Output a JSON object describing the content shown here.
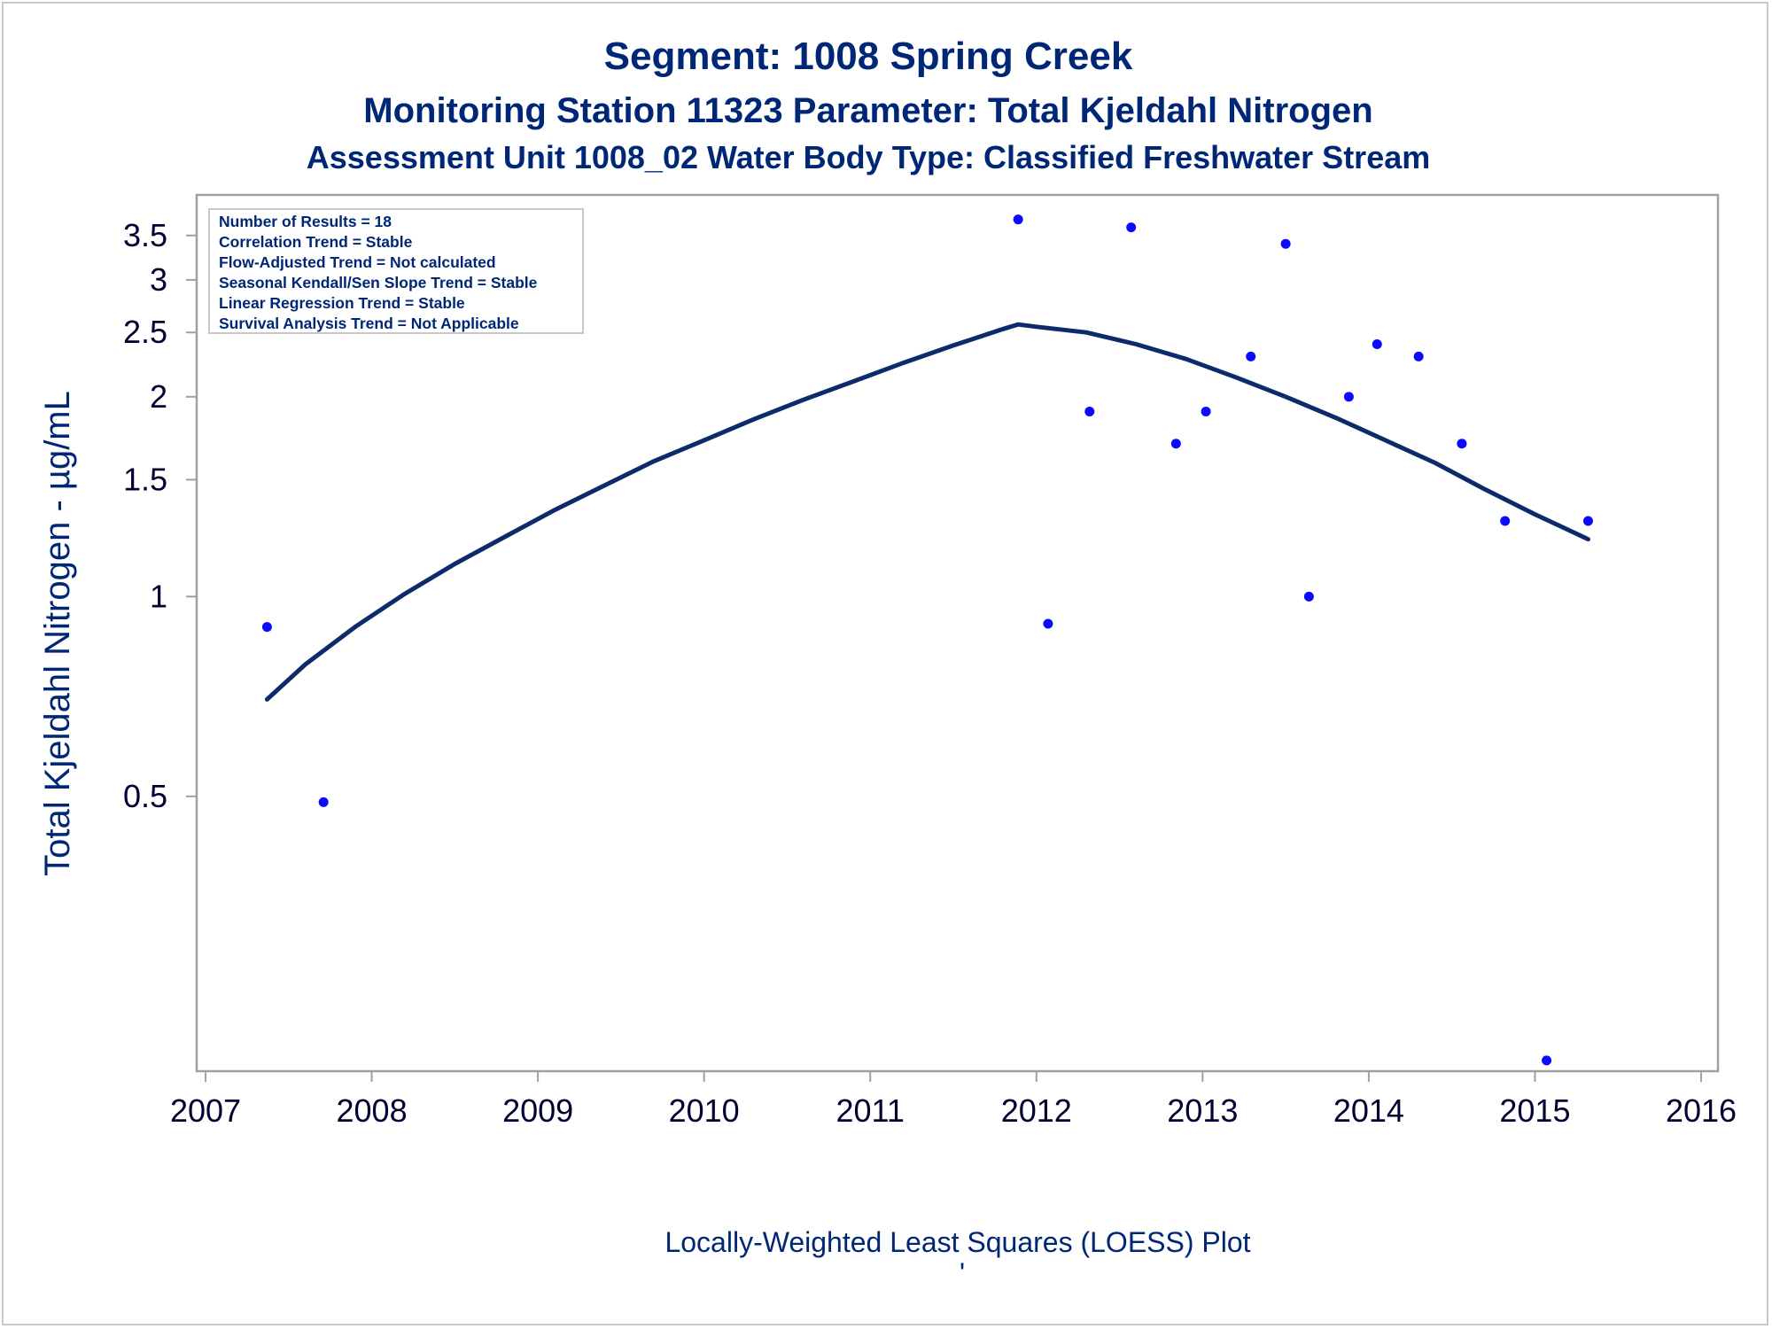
{
  "titles": {
    "line1": "Segment: 1008  Spring Creek",
    "line2": "Monitoring Station 11323 Parameter: Total Kjeldahl Nitrogen",
    "line3": "Assessment Unit 1008_02   Water Body Type: Classified Freshwater Stream"
  },
  "info_box": [
    "Number of Results = 18",
    "Correlation Trend = Stable",
    "Flow-Adjusted Trend = Not calculated",
    "Seasonal Kendall/Sen Slope Trend = Stable",
    "Linear Regression Trend = Stable",
    "Survival Analysis Trend = Not Applicable"
  ],
  "footer": {
    "caption": "Locally-Weighted Least Squares (LOESS) Plot",
    "mark": "'"
  },
  "colors": {
    "title": "#002776",
    "points": "#0a0aff",
    "line": "#0d2a6b",
    "frame": "#a0a0a0"
  },
  "chart_data": {
    "type": "scatter",
    "y_scale": "log",
    "ylabel": "Total Kjeldahl Nitrogen -  µg/mL",
    "xlabel": "",
    "xlim": [
      2007,
      2016
    ],
    "ylim": [
      0.2,
      3.8
    ],
    "x_ticks": [
      "2007",
      "2008",
      "2009",
      "2010",
      "2011",
      "2012",
      "2013",
      "2014",
      "2015",
      "2016"
    ],
    "y_ticks": [
      "0.5",
      "1",
      "1.5",
      "2",
      "2.5",
      "3",
      "3.5"
    ],
    "legend": "top-left",
    "grid": false,
    "series": [
      {
        "kind": "points",
        "x": [
          2007.37,
          2007.71,
          2011.89,
          2012.07,
          2012.32,
          2012.57,
          2012.84,
          2013.02,
          2013.29,
          2013.5,
          2013.64,
          2013.88,
          2014.05,
          2014.3,
          2014.56,
          2014.82,
          2015.07,
          2015.32
        ],
        "y": [
          0.9,
          0.49,
          3.7,
          0.91,
          1.9,
          3.6,
          1.7,
          1.9,
          2.3,
          3.4,
          1.0,
          2.0,
          2.4,
          2.3,
          1.7,
          1.3,
          0.2,
          1.3
        ]
      },
      {
        "kind": "loess",
        "x": [
          2007.37,
          2007.6,
          2007.9,
          2008.2,
          2008.5,
          2008.8,
          2009.1,
          2009.4,
          2009.7,
          2010.0,
          2010.3,
          2010.6,
          2010.9,
          2011.2,
          2011.5,
          2011.8,
          2011.89,
          2012.0,
          2012.3,
          2012.6,
          2012.9,
          2013.2,
          2013.5,
          2013.8,
          2014.1,
          2014.4,
          2014.7,
          2015.0,
          2015.32
        ],
        "y": [
          0.7,
          0.79,
          0.9,
          1.01,
          1.12,
          1.23,
          1.35,
          1.47,
          1.6,
          1.72,
          1.85,
          1.98,
          2.11,
          2.25,
          2.39,
          2.53,
          2.57,
          2.55,
          2.5,
          2.4,
          2.28,
          2.14,
          2.0,
          1.86,
          1.72,
          1.59,
          1.45,
          1.33,
          1.22
        ]
      }
    ]
  }
}
